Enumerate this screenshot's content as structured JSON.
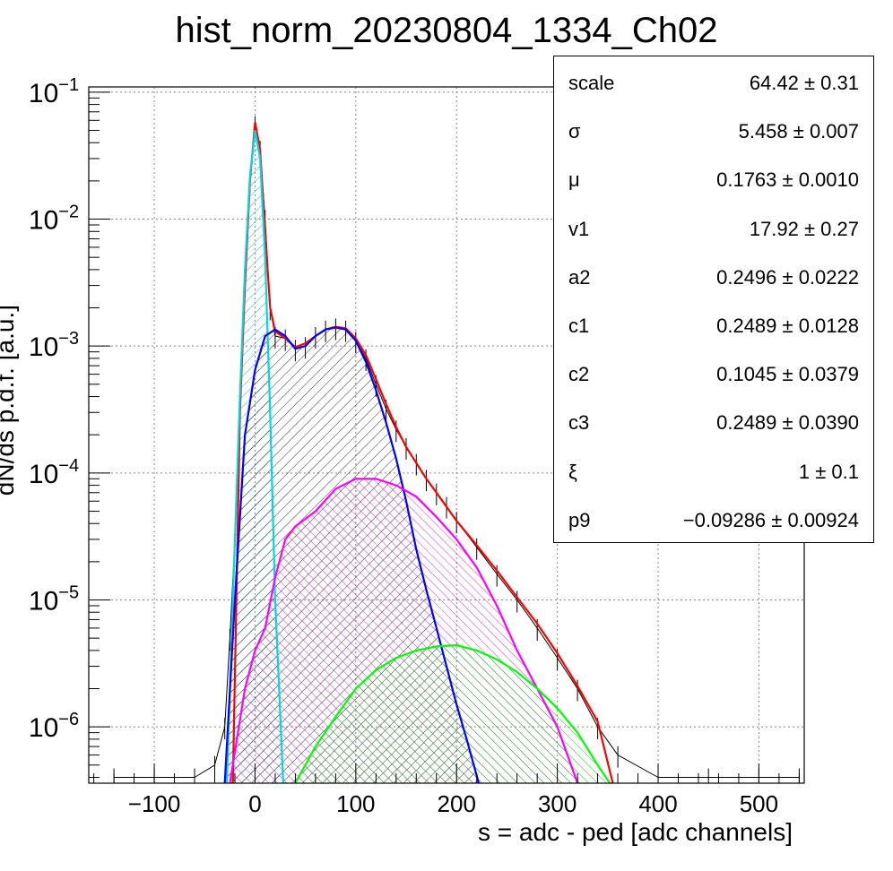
{
  "chart_data": {
    "type": "line",
    "title": "hist_norm_20230804_1334_Ch02",
    "xlabel": "s = adc - ped [adc channels]",
    "ylabel": "dN/ds p.d.f. [a.u.]",
    "x_scale": "linear",
    "y_scale": "log",
    "xlim": [
      -165,
      545
    ],
    "ylim": [
      3.6e-07,
      0.11
    ],
    "x_ticks": [
      -100,
      0,
      100,
      200,
      300,
      400,
      500
    ],
    "x_tick_labels": [
      "−100",
      "0",
      "100",
      "200",
      "300",
      "400",
      "500"
    ],
    "y_ticks": [
      1e-06,
      1e-05,
      0.0001,
      0.001,
      0.01,
      0.1
    ],
    "y_tick_labels": [
      {
        "base": "10",
        "exp": "−6"
      },
      {
        "base": "10",
        "exp": "−5"
      },
      {
        "base": "10",
        "exp": "−4"
      },
      {
        "base": "10",
        "exp": "−3"
      },
      {
        "base": "10",
        "exp": "−2"
      },
      {
        "base": "10",
        "exp": "−1"
      }
    ],
    "grid": true,
    "series": [
      {
        "color": "#000000",
        "style": "histogram",
        "points": [
          [
            -140,
            4e-07
          ],
          [
            -100,
            4e-07
          ],
          [
            -60,
            4e-07
          ],
          [
            -40,
            5e-07
          ],
          [
            -30,
            1e-06
          ],
          [
            -25,
            5e-06
          ],
          [
            -20,
            3e-05
          ],
          [
            -15,
            0.0003
          ],
          [
            -10,
            0.003
          ],
          [
            -5,
            0.02
          ],
          [
            0,
            0.055
          ],
          [
            5,
            0.035
          ],
          [
            10,
            0.01
          ],
          [
            15,
            0.002
          ],
          [
            20,
            0.0012
          ],
          [
            30,
            0.00115
          ],
          [
            40,
            0.00095
          ],
          [
            50,
            0.001
          ],
          [
            60,
            0.0012
          ],
          [
            70,
            0.00135
          ],
          [
            80,
            0.0014
          ],
          [
            90,
            0.00135
          ],
          [
            100,
            0.0011
          ],
          [
            110,
            0.0008
          ],
          [
            120,
            0.0005
          ],
          [
            130,
            0.00032
          ],
          [
            140,
            0.00022
          ],
          [
            150,
            0.00016
          ],
          [
            160,
            0.00012
          ],
          [
            170,
            9e-05
          ],
          [
            180,
            7e-05
          ],
          [
            190,
            5.5e-05
          ],
          [
            200,
            4.2e-05
          ],
          [
            220,
            2.6e-05
          ],
          [
            240,
            1.6e-05
          ],
          [
            260,
            1e-05
          ],
          [
            280,
            6e-06
          ],
          [
            300,
            3.5e-06
          ],
          [
            320,
            2e-06
          ],
          [
            340,
            1e-06
          ],
          [
            360,
            6e-07
          ],
          [
            400,
            4e-07
          ],
          [
            450,
            4e-07
          ],
          [
            500,
            4e-07
          ],
          [
            540,
            4e-07
          ]
        ]
      },
      {
        "color": "#ff0000",
        "style": "line",
        "points": [
          [
            -22,
            3.6e-07
          ],
          [
            -15,
            0.0003
          ],
          [
            -10,
            0.003
          ],
          [
            -5,
            0.02
          ],
          [
            0,
            0.058
          ],
          [
            5,
            0.035
          ],
          [
            10,
            0.008
          ],
          [
            15,
            0.002
          ],
          [
            20,
            0.0013
          ],
          [
            30,
            0.00115
          ],
          [
            40,
            0.00098
          ],
          [
            50,
            0.00105
          ],
          [
            60,
            0.0012
          ],
          [
            70,
            0.00135
          ],
          [
            80,
            0.00142
          ],
          [
            90,
            0.00138
          ],
          [
            100,
            0.00115
          ],
          [
            110,
            0.00085
          ],
          [
            120,
            0.00055
          ],
          [
            130,
            0.00035
          ],
          [
            140,
            0.00023
          ],
          [
            150,
            0.00016
          ],
          [
            160,
            0.00012
          ],
          [
            170,
            9e-05
          ],
          [
            180,
            7e-05
          ],
          [
            200,
            4.2e-05
          ],
          [
            220,
            2.7e-05
          ],
          [
            240,
            1.7e-05
          ],
          [
            260,
            1.05e-05
          ],
          [
            280,
            6.5e-06
          ],
          [
            300,
            3.8e-06
          ],
          [
            320,
            2.1e-06
          ],
          [
            340,
            1.1e-06
          ],
          [
            355,
            3.6e-07
          ]
        ]
      },
      {
        "color": "#00d8e0",
        "style": "filled",
        "points": [
          [
            -28,
            3.6e-07
          ],
          [
            -20,
            3e-05
          ],
          [
            -15,
            0.0004
          ],
          [
            -10,
            0.004
          ],
          [
            -5,
            0.022
          ],
          [
            0,
            0.05
          ],
          [
            5,
            0.03
          ],
          [
            10,
            0.005
          ],
          [
            15,
            0.0003
          ],
          [
            20,
            1e-05
          ],
          [
            28,
            3.6e-07
          ]
        ]
      },
      {
        "color": "#0000ff",
        "style": "filled",
        "points": [
          [
            -30,
            3.6e-07
          ],
          [
            -20,
            1e-05
          ],
          [
            -10,
            0.0002
          ],
          [
            0,
            0.00065
          ],
          [
            10,
            0.0012
          ],
          [
            20,
            0.00135
          ],
          [
            30,
            0.0012
          ],
          [
            40,
            0.00095
          ],
          [
            50,
            0.001
          ],
          [
            60,
            0.0012
          ],
          [
            70,
            0.00135
          ],
          [
            80,
            0.0014
          ],
          [
            90,
            0.00135
          ],
          [
            100,
            0.0011
          ],
          [
            110,
            0.00075
          ],
          [
            120,
            0.00045
          ],
          [
            130,
            0.00025
          ],
          [
            140,
            0.00013
          ],
          [
            150,
            6e-05
          ],
          [
            160,
            2.5e-05
          ],
          [
            170,
            1.2e-05
          ],
          [
            180,
            6e-06
          ],
          [
            190,
            3e-06
          ],
          [
            200,
            1.5e-06
          ],
          [
            210,
            8e-07
          ],
          [
            222,
            3.6e-07
          ]
        ]
      },
      {
        "color": "#ff00ff",
        "style": "filled",
        "points": [
          [
            -25,
            3.6e-07
          ],
          [
            -10,
            2e-06
          ],
          [
            0,
            4e-06
          ],
          [
            10,
            6e-06
          ],
          [
            20,
            1.5e-05
          ],
          [
            30,
            3e-05
          ],
          [
            40,
            3.8e-05
          ],
          [
            60,
            5e-05
          ],
          [
            80,
            7.5e-05
          ],
          [
            100,
            9e-05
          ],
          [
            120,
            9e-05
          ],
          [
            140,
            8e-05
          ],
          [
            160,
            6.5e-05
          ],
          [
            180,
            4.5e-05
          ],
          [
            200,
            3e-05
          ],
          [
            220,
            1.8e-05
          ],
          [
            240,
            9e-06
          ],
          [
            260,
            4e-06
          ],
          [
            280,
            2e-06
          ],
          [
            300,
            1e-06
          ],
          [
            310,
            6e-07
          ],
          [
            320,
            3.6e-07
          ]
        ]
      },
      {
        "color": "#00ff00",
        "style": "filled",
        "points": [
          [
            40,
            3.6e-07
          ],
          [
            60,
            7e-07
          ],
          [
            80,
            1.2e-06
          ],
          [
            100,
            2e-06
          ],
          [
            120,
            2.8e-06
          ],
          [
            140,
            3.5e-06
          ],
          [
            160,
            4e-06
          ],
          [
            180,
            4.3e-06
          ],
          [
            200,
            4.4e-06
          ],
          [
            220,
            4e-06
          ],
          [
            240,
            3.4e-06
          ],
          [
            260,
            2.7e-06
          ],
          [
            280,
            2e-06
          ],
          [
            300,
            1.4e-06
          ],
          [
            320,
            9e-07
          ],
          [
            340,
            5e-07
          ],
          [
            352,
            3.6e-07
          ]
        ]
      }
    ]
  },
  "stats": {
    "rows": [
      {
        "name": "scale",
        "value": "64.42 ± 0.31"
      },
      {
        "name": "σ",
        "value": "5.458 ± 0.007"
      },
      {
        "name": "μ",
        "value": "0.1763 ± 0.0010"
      },
      {
        "name": "v1",
        "value": "17.92 ± 0.27"
      },
      {
        "name": "a2",
        "value": "0.2496 ± 0.0222"
      },
      {
        "name": "c1",
        "value": "0.2489 ± 0.0128"
      },
      {
        "name": "c2",
        "value": "0.1045 ± 0.0379"
      },
      {
        "name": "c3",
        "value": "0.2489 ± 0.0390"
      },
      {
        "name": "ξ",
        "value": "1 ± 0.1"
      },
      {
        "name": "p9",
        "value": "−0.09286 ± 0.00924"
      }
    ]
  }
}
